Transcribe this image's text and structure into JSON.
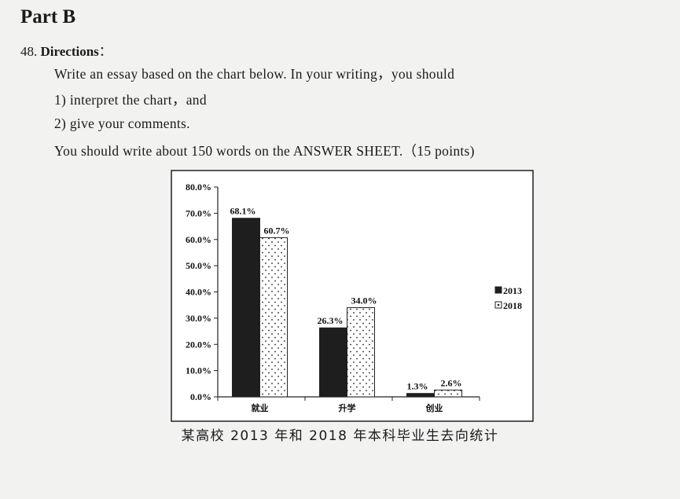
{
  "part_title": "Part B",
  "question": {
    "number": "48.",
    "label": "Directions",
    "colon": "："
  },
  "lines": [
    "Write an essay based on the chart below. In your writing，you should",
    "1) interpret the chart，and",
    "2) give your comments.",
    "You should write about 150 words on the ANSWER SHEET.（15 points)"
  ],
  "chart_data": {
    "type": "bar",
    "categories": [
      "就业",
      "升学",
      "创业"
    ],
    "series": [
      {
        "name": "2013",
        "values": [
          68.1,
          26.3,
          1.3
        ],
        "labels": [
          "68.1%",
          "26.3%",
          "1.3%"
        ],
        "color": "#1e1e1e",
        "pattern": "solid"
      },
      {
        "name": "2018",
        "values": [
          60.7,
          34.0,
          2.6
        ],
        "labels": [
          "60.7%",
          "34.0%",
          "2.6%"
        ],
        "color": "#ffffff",
        "pattern": "dotted"
      }
    ],
    "yticks": [
      "0.0%",
      "10.0%",
      "20.0%",
      "30.0%",
      "40.0%",
      "50.0%",
      "60.0%",
      "70.0%",
      "80.0%"
    ],
    "ylim": [
      0,
      80
    ],
    "legend_position": "right",
    "caption": "某高校 2013 年和 2018 年本科毕业生去向统计"
  }
}
